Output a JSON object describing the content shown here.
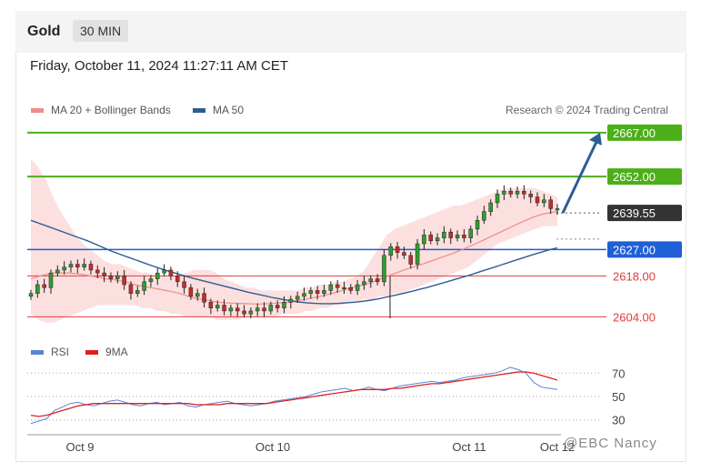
{
  "header": {
    "title": "Gold",
    "timeframe": "30 MIN"
  },
  "datetime": "Friday, October 11, 2024 11:27:11 AM CET",
  "legend_main": [
    {
      "label": "MA 20 + Bollinger Bands",
      "color": "#f08c8c"
    },
    {
      "label": "MA 50",
      "color": "#2d5d94"
    }
  ],
  "legend_rsi": [
    {
      "label": "RSI",
      "color": "#5b83d6"
    },
    {
      "label": "9MA",
      "color": "#e02020"
    }
  ],
  "credit": "Research © 2024 Trading Central",
  "watermark": "@EBC Nancy",
  "chart_data": [
    {
      "type": "candlestick",
      "instrument": "Gold",
      "interval": "30 MIN",
      "x_ticks": [
        "Oct 9",
        "Oct 10",
        "Oct 11",
        "Oct 12"
      ],
      "ylim": [
        2601,
        2671
      ],
      "levels": [
        {
          "label": "2667.00",
          "value": 2667.0,
          "color": "#4caf1a",
          "kind": "target"
        },
        {
          "label": "2652.00",
          "value": 2652.0,
          "color": "#4caf1a",
          "kind": "target"
        },
        {
          "label": "2639.55",
          "value": 2639.55,
          "color": "#333333",
          "kind": "last"
        },
        {
          "label": "2627.00",
          "value": 2627.0,
          "color": "#1f5fd6",
          "kind": "pivot"
        },
        {
          "label": "2618.00",
          "value": 2618.0,
          "color": "#e03c3c",
          "kind": "support"
        },
        {
          "label": "2604.00",
          "value": 2604.0,
          "color": "#e03c3c",
          "kind": "support"
        }
      ],
      "close": [
        2612,
        2615,
        2614,
        2619,
        2620,
        2621,
        2622,
        2621,
        2622,
        2620,
        2619,
        2618,
        2617,
        2618,
        2615,
        2612,
        2613,
        2616,
        2617,
        2619,
        2620,
        2618,
        2616,
        2614,
        2611,
        2612,
        2609,
        2607,
        2608,
        2606,
        2607,
        2606,
        2605,
        2606,
        2607,
        2606,
        2608,
        2607,
        2609,
        2610,
        2611,
        2612,
        2613,
        2612,
        2613,
        2615,
        2614,
        2614,
        2613,
        2615,
        2616,
        2617,
        2616,
        2625,
        2628,
        2626,
        2625,
        2622,
        2629,
        2632,
        2630,
        2631,
        2633,
        2631,
        2632,
        2631,
        2634,
        2637,
        2640,
        2643,
        2646,
        2647,
        2646,
        2647,
        2646,
        2645,
        2643,
        2644,
        2641,
        2641
      ],
      "ma20": [
        2617,
        2617.8,
        2618.5,
        2619,
        2619,
        2619,
        2618.8,
        2618.5,
        2618,
        2617.6,
        2617,
        2616.8,
        2616.3,
        2615.8,
        2615,
        2614.5,
        2614,
        2613.6,
        2613.1,
        2612.6,
        2612,
        2611.2,
        2610.5,
        2610,
        2609.6,
        2609.1,
        2608.8,
        2608.7,
        2608.6,
        2608.5,
        2608.4,
        2608.4,
        2608.5,
        2608.7,
        2608.8,
        2609,
        2609.6,
        2610,
        2610.5,
        2611,
        2611.6,
        2612.3,
        2613,
        2613.8,
        2614.5,
        2615,
        2615.8,
        2616.8,
        2617.8,
        2618.8,
        2619.7,
        2620.6,
        2621.4,
        2622.2,
        2623.1,
        2624,
        2624.9,
        2625.8,
        2626.8,
        2627.9,
        2629,
        2630.2,
        2631.4,
        2632.6,
        2633.8,
        2635,
        2636.2,
        2637.3,
        2638.3,
        2639.1,
        2639.6,
        2640
      ],
      "bb_upper": [
        2658,
        2655,
        2651,
        2645,
        2640,
        2636,
        2632,
        2629,
        2627,
        2625,
        2623,
        2622,
        2622,
        2621,
        2620,
        2619,
        2619,
        2618,
        2618,
        2618,
        2618,
        2619,
        2620,
        2620,
        2620,
        2619,
        2617,
        2616,
        2615,
        2614,
        2614,
        2613,
        2613,
        2613,
        2613,
        2613,
        2613,
        2614,
        2614,
        2615,
        2615,
        2616,
        2616,
        2617,
        2618,
        2620,
        2624,
        2628,
        2632,
        2634,
        2635,
        2636,
        2637,
        2638,
        2639,
        2640,
        2641,
        2642,
        2642,
        2643,
        2644,
        2645,
        2646,
        2647,
        2648,
        2648,
        2648,
        2648,
        2648,
        2647,
        2646,
        2645
      ],
      "bb_lower": [
        2605,
        2603,
        2602,
        2602,
        2603,
        2604,
        2605,
        2606,
        2607,
        2608,
        2608,
        2608,
        2608,
        2608,
        2608,
        2607,
        2607,
        2606,
        2606,
        2605,
        2605,
        2604,
        2604,
        2604,
        2604,
        2603,
        2603,
        2603,
        2603,
        2604,
        2604,
        2604,
        2604,
        2604,
        2605,
        2605,
        2605,
        2606,
        2606,
        2607,
        2607,
        2608,
        2608,
        2609,
        2609,
        2610,
        2610,
        2611,
        2611,
        2612,
        2612,
        2613,
        2614,
        2615,
        2616,
        2617,
        2618,
        2619,
        2620,
        2621,
        2623,
        2625,
        2627,
        2629,
        2630,
        2631,
        2632,
        2633,
        2634,
        2635,
        2635,
        2635
      ],
      "ma50": [
        2637,
        2636,
        2635,
        2634,
        2633,
        2632,
        2631,
        2630,
        2628.8,
        2627.6,
        2626.4,
        2625.4,
        2624.4,
        2623.4,
        2622.4,
        2621.4,
        2620.5,
        2619.6,
        2618.8,
        2618,
        2617.2,
        2616.5,
        2615.8,
        2615.1,
        2614.4,
        2613.7,
        2613,
        2612.3,
        2611.7,
        2611.1,
        2610.5,
        2610,
        2609.5,
        2609.1,
        2608.8,
        2608.6,
        2608.5,
        2608.5,
        2608.6,
        2608.8,
        2609,
        2609.3,
        2609.7,
        2610.2,
        2610.8,
        2611.4,
        2612,
        2612.7,
        2613.4,
        2614.1,
        2614.9,
        2615.7,
        2616.5,
        2617.3,
        2618.1,
        2619,
        2619.9,
        2620.8,
        2621.7,
        2622.6,
        2623.5,
        2624.4,
        2625.3,
        2626.1,
        2626.9,
        2627.6
      ],
      "projection": {
        "from": 2639.55,
        "to": 2667.0
      }
    },
    {
      "type": "line",
      "title": "RSI",
      "ylim": [
        22,
        78
      ],
      "y_ticks": [
        70,
        50,
        30
      ],
      "series": [
        {
          "name": "RSI",
          "values": [
            27,
            29,
            31,
            38,
            41,
            44,
            45,
            43,
            42,
            44,
            46,
            47,
            45,
            43,
            42,
            44,
            45,
            43,
            44,
            45,
            42,
            41,
            43,
            44,
            45,
            46,
            44,
            43,
            42,
            43,
            44,
            46,
            47,
            48,
            49,
            50,
            52,
            54,
            55,
            56,
            57,
            55,
            56,
            58,
            56,
            55,
            57,
            59,
            60,
            61,
            62,
            63,
            62,
            63,
            64,
            66,
            67,
            68,
            69,
            70,
            72,
            75,
            73,
            70,
            62,
            58,
            57,
            56
          ]
        },
        {
          "name": "9MA",
          "values": [
            34,
            33,
            34,
            36,
            38,
            40,
            42,
            43,
            44,
            44,
            44,
            44,
            44,
            44,
            44,
            44,
            44,
            44,
            44,
            44,
            44,
            43,
            43,
            43,
            43,
            44,
            44,
            44,
            44,
            44,
            44,
            45,
            46,
            47,
            48,
            49,
            50,
            51,
            52,
            53,
            54,
            55,
            56,
            56,
            56,
            56,
            57,
            57,
            58,
            59,
            60,
            61,
            61,
            62,
            63,
            64,
            65,
            66,
            67,
            68,
            69,
            70,
            71,
            71,
            70,
            68,
            66,
            64
          ]
        }
      ]
    }
  ]
}
